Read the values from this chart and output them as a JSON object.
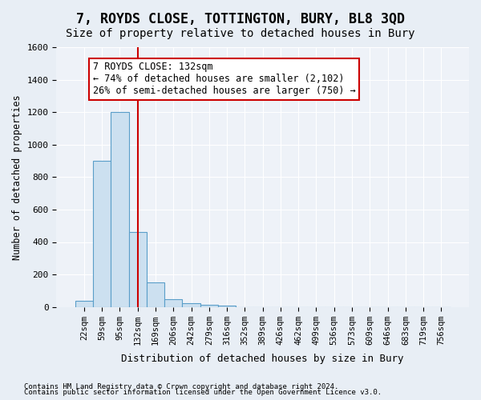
{
  "title": "7, ROYDS CLOSE, TOTTINGTON, BURY, BL8 3QD",
  "subtitle": "Size of property relative to detached houses in Bury",
  "xlabel": "Distribution of detached houses by size in Bury",
  "ylabel": "Number of detached properties",
  "footnote1": "Contains HM Land Registry data © Crown copyright and database right 2024.",
  "footnote2": "Contains public sector information licensed under the Open Government Licence v3.0.",
  "annotation_line1": "7 ROYDS CLOSE: 132sqm",
  "annotation_line2": "← 74% of detached houses are smaller (2,102)",
  "annotation_line3": "26% of semi-detached houses are larger (750) →",
  "property_size": 132,
  "bin_labels": [
    "22sqm",
    "59sqm",
    "95sqm",
    "132sqm",
    "169sqm",
    "206sqm",
    "242sqm",
    "279sqm",
    "316sqm",
    "352sqm",
    "389sqm",
    "426sqm",
    "462sqm",
    "499sqm",
    "536sqm",
    "573sqm",
    "609sqm",
    "646sqm",
    "683sqm",
    "719sqm",
    "756sqm"
  ],
  "bar_values": [
    40,
    900,
    1200,
    460,
    150,
    50,
    25,
    15,
    10,
    0,
    0,
    0,
    0,
    0,
    0,
    0,
    0,
    0,
    0,
    0,
    0
  ],
  "bar_color": "#cce0f0",
  "bar_edgecolor": "#5a9ec9",
  "vline_color": "#cc0000",
  "vline_x": 3,
  "ylim": [
    0,
    1600
  ],
  "yticks": [
    0,
    200,
    400,
    600,
    800,
    1000,
    1200,
    1400,
    1600
  ],
  "bg_color": "#e8eef5",
  "plot_bg_color": "#eef2f8",
  "grid_color": "#ffffff",
  "title_fontsize": 12,
  "subtitle_fontsize": 10,
  "annotation_fontsize": 8.5
}
